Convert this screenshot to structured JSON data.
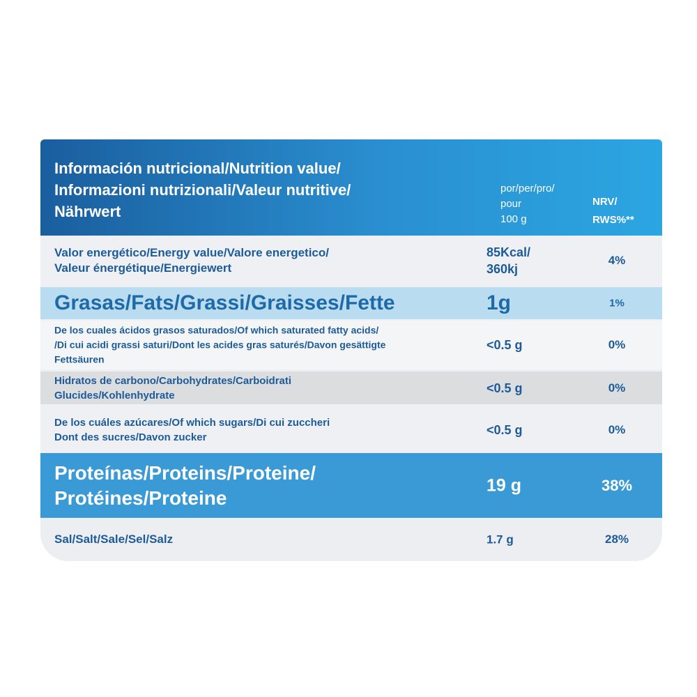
{
  "header": {
    "title": [
      "Información nutricional/Nutrition value/",
      "Informazioni nutrizionali/Valeur nutritive/",
      "Nährwert"
    ],
    "per": [
      "por/per/pro/",
      "pour",
      "100 g"
    ],
    "nrv": [
      "NRV/",
      "RWS%**"
    ]
  },
  "table": {
    "rows": [
      {
        "label": [
          "Valor energético/Energy value/Valore energetico/",
          "Valeur énergétique/Energiewert"
        ],
        "amount": [
          "85Kcal/",
          "360kj"
        ],
        "nrv": "4%"
      },
      {
        "label": [
          "Grasas/Fats/Grassi/Graisses/Fette"
        ],
        "amount": [
          "1g"
        ],
        "nrv": "1%"
      },
      {
        "label": [
          "De los cuales ácidos grasos saturados/Of which saturated fatty acids/",
          "/Di cui acidi grassi saturi/Dont les acides gras saturés/Davon gesättigte",
          "Fettsäuren"
        ],
        "amount": [
          "<0.5 g"
        ],
        "nrv": "0%"
      },
      {
        "label": [
          "Hidratos de carbono/Carbohydrates/Carboidrati",
          "Glucides/Kohlenhydrate"
        ],
        "amount": [
          "<0.5 g"
        ],
        "nrv": "0%"
      },
      {
        "label": [
          "De los cuáles azúcares/Of which sugars/Di cui zuccheri",
          "Dont des sucres/Davon zucker"
        ],
        "amount": [
          "<0.5 g"
        ],
        "nrv": "0%"
      },
      {
        "label": [
          "Proteínas/Proteins/Proteine/",
          "Protéines/Proteine"
        ],
        "amount": [
          "19 g"
        ],
        "nrv": "38%"
      },
      {
        "label": [
          "Sal/Salt/Sale/Sel/Salz"
        ],
        "amount": [
          "1.7 g"
        ],
        "nrv": "28%"
      }
    ]
  }
}
